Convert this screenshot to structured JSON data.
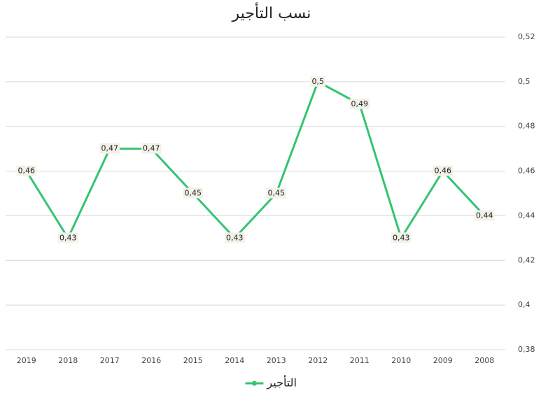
{
  "chart_data": {
    "type": "line",
    "title": "نسب التأجير",
    "categories": [
      "2019",
      "2018",
      "2017",
      "2016",
      "2015",
      "2014",
      "2013",
      "2012",
      "2011",
      "2010",
      "2009",
      "2008"
    ],
    "series": [
      {
        "name": "التأجير",
        "color": "#34c472",
        "values": [
          0.46,
          0.43,
          0.47,
          0.47,
          0.45,
          0.43,
          0.45,
          0.5,
          0.49,
          0.43,
          0.46,
          0.44
        ],
        "value_labels": [
          "0,46",
          "0,43",
          "0,47",
          "0,47",
          "0,45",
          "0,43",
          "0,45",
          "0,5",
          "0,49",
          "0,43",
          "0,46",
          "0,44"
        ]
      }
    ],
    "ylim": [
      0.38,
      0.52
    ],
    "yticks": [
      {
        "value": 0.38,
        "label": "0,38"
      },
      {
        "value": 0.4,
        "label": "0,4"
      },
      {
        "value": 0.42,
        "label": "0,42"
      },
      {
        "value": 0.44,
        "label": "0,44"
      },
      {
        "value": 0.46,
        "label": "0,46"
      },
      {
        "value": 0.48,
        "label": "0,48"
      },
      {
        "value": 0.5,
        "label": "0,5"
      },
      {
        "value": 0.52,
        "label": "0,52"
      }
    ],
    "grid": true,
    "legend": "bottom"
  }
}
